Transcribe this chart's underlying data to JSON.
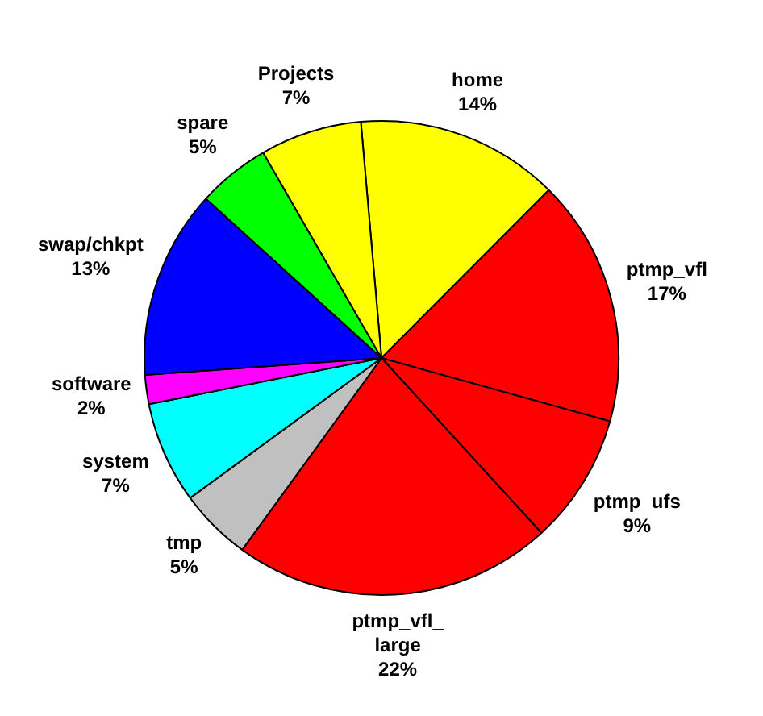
{
  "chart_data": {
    "type": "pie",
    "categories": [
      "home",
      "ptmp_vfl",
      "ptmp_ufs",
      "ptmp_vfl_large",
      "tmp",
      "system",
      "software",
      "swap/chkpt",
      "spare",
      "Projects"
    ],
    "values": [
      14,
      17,
      9,
      22,
      5,
      7,
      2,
      13,
      5,
      7
    ],
    "value_labels": [
      "14%",
      "17%",
      "9%",
      "22%",
      "5%",
      "7%",
      "2%",
      "13%",
      "5%",
      "7%"
    ],
    "colors": [
      "#ffff00",
      "#ff0000",
      "#ff0000",
      "#ff0000",
      "#c0c0c0",
      "#00ffff",
      "#ff00ff",
      "#0000ff",
      "#00ff00",
      "#ffff00"
    ]
  }
}
